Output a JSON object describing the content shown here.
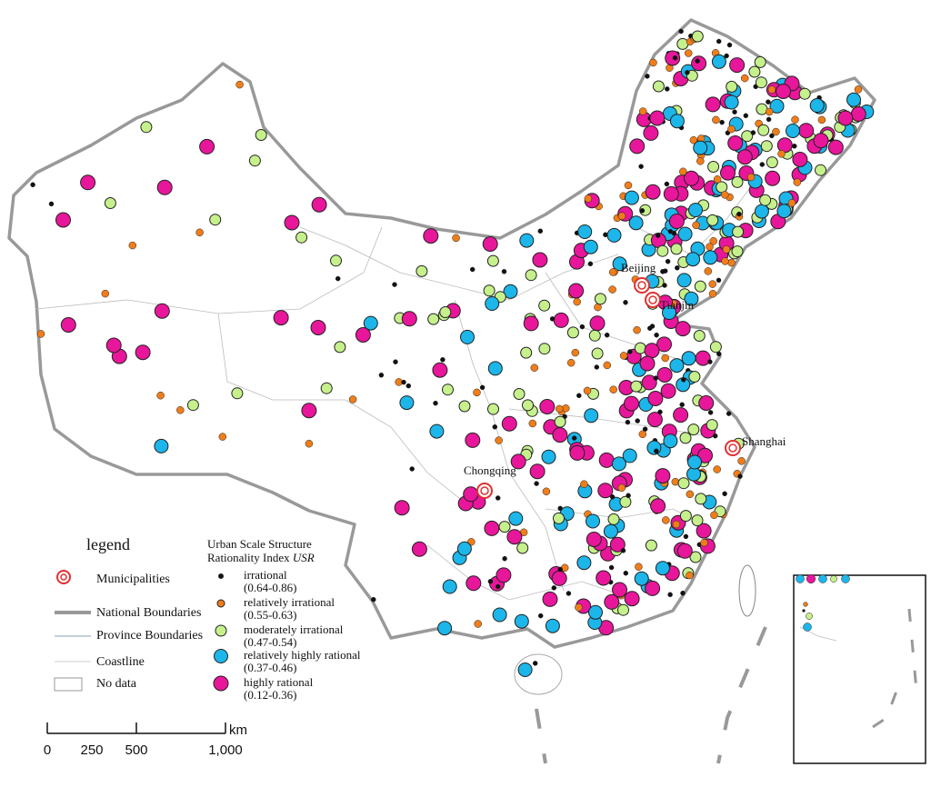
{
  "legend": {
    "title": "legend",
    "items": [
      "Municipalities",
      "National Boundaries",
      "Province Boundaries",
      "Coastline",
      "No data"
    ]
  },
  "usr_legend": {
    "title_line1": "Urban Scale Structure",
    "title_line2": "Rationality Index",
    "title_symbol": "USR",
    "classes": [
      {
        "label": "irrational",
        "range": "(0.64-0.86)",
        "color": "#111111"
      },
      {
        "label": "relatively irrational",
        "range": "(0.55-0.63)",
        "color": "#ef7d1a"
      },
      {
        "label": "moderately irrational",
        "range": "(0.47-0.54)",
        "color": "#c6f08c"
      },
      {
        "label": "relatively highly rational",
        "range": "(0.37-0.46)",
        "color": "#1cb6ea"
      },
      {
        "label": "highly rational",
        "range": "(0.12-0.36)",
        "color": "#e8169a"
      }
    ]
  },
  "cities": [
    "Beijing",
    "Tianjin",
    "Shanghai",
    "Chongqing"
  ],
  "scale_bar": {
    "unit": "km",
    "ticks": [
      0,
      250,
      500,
      {
        "value": 1000,
        "label": "1,000"
      }
    ]
  }
}
